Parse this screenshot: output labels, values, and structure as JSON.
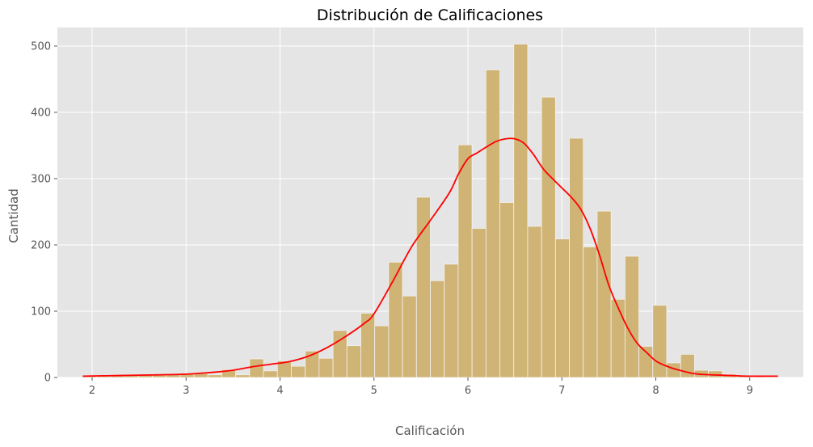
{
  "chart_data": {
    "type": "bar",
    "title": "Distribución de Calificaciones",
    "xlabel": "Calificación",
    "ylabel": "Cantidad",
    "xlim": [
      1.63,
      9.57
    ],
    "ylim": [
      0,
      528
    ],
    "xticks": [
      2,
      3,
      4,
      5,
      6,
      7,
      8,
      9
    ],
    "yticks": [
      0,
      100,
      200,
      300,
      400,
      500
    ],
    "grid": true,
    "colors": {
      "background": "#e5e5e5",
      "grid": "#ffffff",
      "bar": "#d0b475",
      "bar_edge": "#f2f2f2",
      "kde": "#ff0000",
      "text": "#000000",
      "tick_text": "#555555"
    },
    "histogram": {
      "bin_start": 1.9,
      "bin_width": 0.148,
      "counts": [
        2,
        2,
        3,
        4,
        4,
        4,
        5,
        5,
        6,
        4,
        12,
        4,
        28,
        10,
        25,
        17,
        40,
        29,
        71,
        48,
        97,
        78,
        174,
        123,
        272,
        146,
        171,
        351,
        225,
        464,
        264,
        503,
        228,
        423,
        209,
        361,
        197,
        251,
        118,
        183,
        47,
        109,
        22,
        35,
        11,
        10,
        5,
        2,
        1,
        1
      ]
    },
    "series": [
      {
        "name": "",
        "type": "line",
        "x": [
          1.9,
          2.3,
          2.7,
          3.0,
          3.3,
          3.5,
          3.7,
          3.9,
          4.1,
          4.3,
          4.5,
          4.7,
          4.9,
          5.0,
          5.2,
          5.4,
          5.6,
          5.8,
          5.9,
          6.0,
          6.1,
          6.2,
          6.3,
          6.4,
          6.5,
          6.6,
          6.7,
          6.8,
          6.9,
          7.0,
          7.1,
          7.2,
          7.3,
          7.4,
          7.5,
          7.6,
          7.7,
          7.8,
          7.9,
          8.0,
          8.1,
          8.2,
          8.4,
          8.6,
          8.8,
          9.0,
          9.3
        ],
        "y": [
          2,
          3,
          4,
          5,
          8,
          11,
          16,
          20,
          24,
          32,
          45,
          62,
          82,
          96,
          145,
          197,
          237,
          278,
          307,
          330,
          339,
          348,
          356,
          360,
          360,
          353,
          336,
          315,
          300,
          286,
          272,
          254,
          225,
          185,
          139,
          105,
          75,
          52,
          38,
          25,
          18,
          13,
          6,
          4,
          3,
          2,
          2
        ]
      }
    ]
  }
}
